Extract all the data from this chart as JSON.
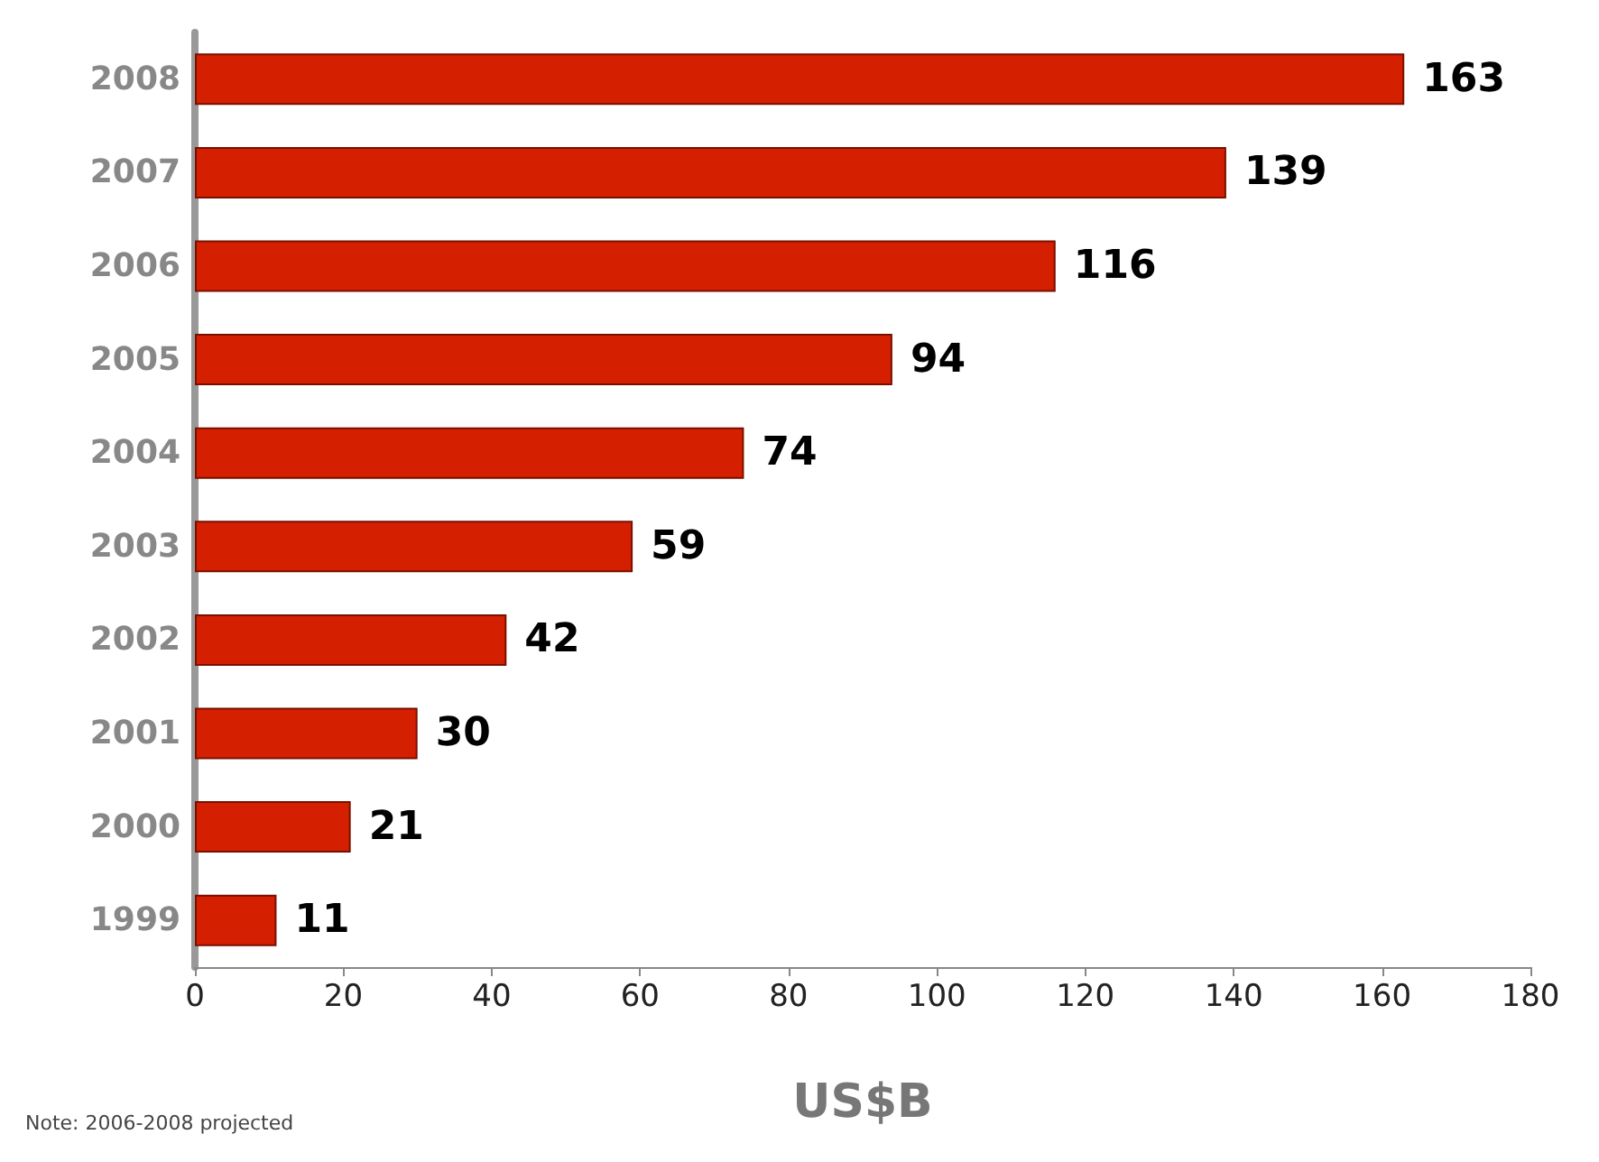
{
  "chart_data": {
    "type": "bar",
    "orientation": "horizontal",
    "categories": [
      "2008",
      "2007",
      "2006",
      "2005",
      "2004",
      "2003",
      "2002",
      "2001",
      "2000",
      "1999"
    ],
    "values": [
      163,
      139,
      116,
      94,
      74,
      59,
      42,
      30,
      21,
      11
    ],
    "color": "#d42000",
    "xlim": [
      0,
      180
    ],
    "xticks": [
      0,
      20,
      40,
      60,
      80,
      100,
      120,
      140,
      160,
      180
    ],
    "xlabel": "US$B",
    "annotations": [
      "Note: 2006-2008 projected"
    ],
    "data_labels": true,
    "grid": false
  }
}
